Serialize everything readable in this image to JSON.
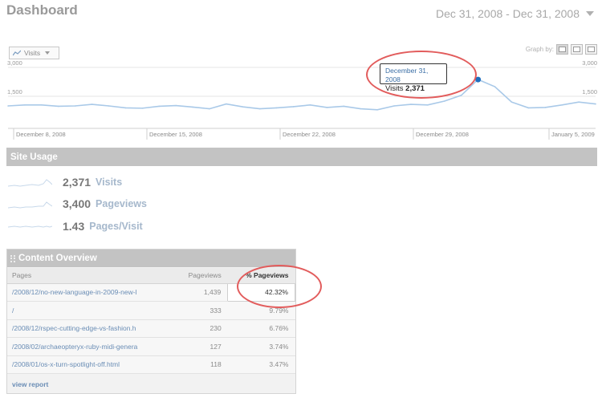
{
  "header": {
    "title": "Dashboard",
    "date_range": "Dec 31, 2008 - Dec 31, 2008"
  },
  "graph_controls": {
    "metric_select": "Visits",
    "graph_by_label": "Graph by:"
  },
  "chart_data": {
    "type": "line",
    "series": [
      {
        "name": "Visits",
        "values": [
          1000,
          1050,
          1050,
          980,
          1000,
          1080,
          1000,
          900,
          880,
          980,
          1020,
          940,
          850,
          1100,
          950,
          850,
          900,
          960,
          1050,
          920,
          980,
          850,
          800,
          1000,
          1080,
          1050,
          1250,
          1550,
          2371,
          2000,
          1200,
          900,
          920,
          1050,
          1200,
          1100
        ]
      }
    ],
    "x_tick_labels": [
      "December 8, 2008",
      "December 15, 2008",
      "December 22, 2008",
      "December 29, 2008",
      "January 5, 2009"
    ],
    "y_ticks_left": [
      "3,000",
      "1,500"
    ],
    "y_ticks_right": [
      "3,000",
      "1,500"
    ],
    "ylim": [
      0,
      3000
    ],
    "highlight_index": 28,
    "grid": true
  },
  "tooltip": {
    "date": "December 31, 2008",
    "label": "Visits",
    "value": "2,371"
  },
  "site_usage": {
    "title": "Site Usage",
    "rows": [
      {
        "value": "2,371",
        "label": "Visits"
      },
      {
        "value": "3,400",
        "label": "Pageviews"
      },
      {
        "value": "1.43",
        "label": "Pages/Visit"
      }
    ]
  },
  "content_overview": {
    "title": "Content Overview",
    "columns": [
      "Pages",
      "Pageviews",
      "% Pageviews"
    ],
    "rows": [
      {
        "page": "/2008/12/no-new-language-in-2009-new-l",
        "pageviews": "1,439",
        "pct": "42.32%"
      },
      {
        "page": "/",
        "pageviews": "333",
        "pct": "9.79%"
      },
      {
        "page": "/2008/12/rspec-cutting-edge-vs-fashion.h",
        "pageviews": "230",
        "pct": "6.76%"
      },
      {
        "page": "/2008/02/archaeopteryx-ruby-midi-genera",
        "pageviews": "127",
        "pct": "3.74%"
      },
      {
        "page": "/2008/01/os-x-turn-spotlight-off.html",
        "pageviews": "118",
        "pct": "3.47%"
      }
    ],
    "view_report": "view report"
  },
  "colors": {
    "line": "#a9c9e8",
    "point": "#1f6fbf",
    "annotation": "#e25c5c"
  }
}
